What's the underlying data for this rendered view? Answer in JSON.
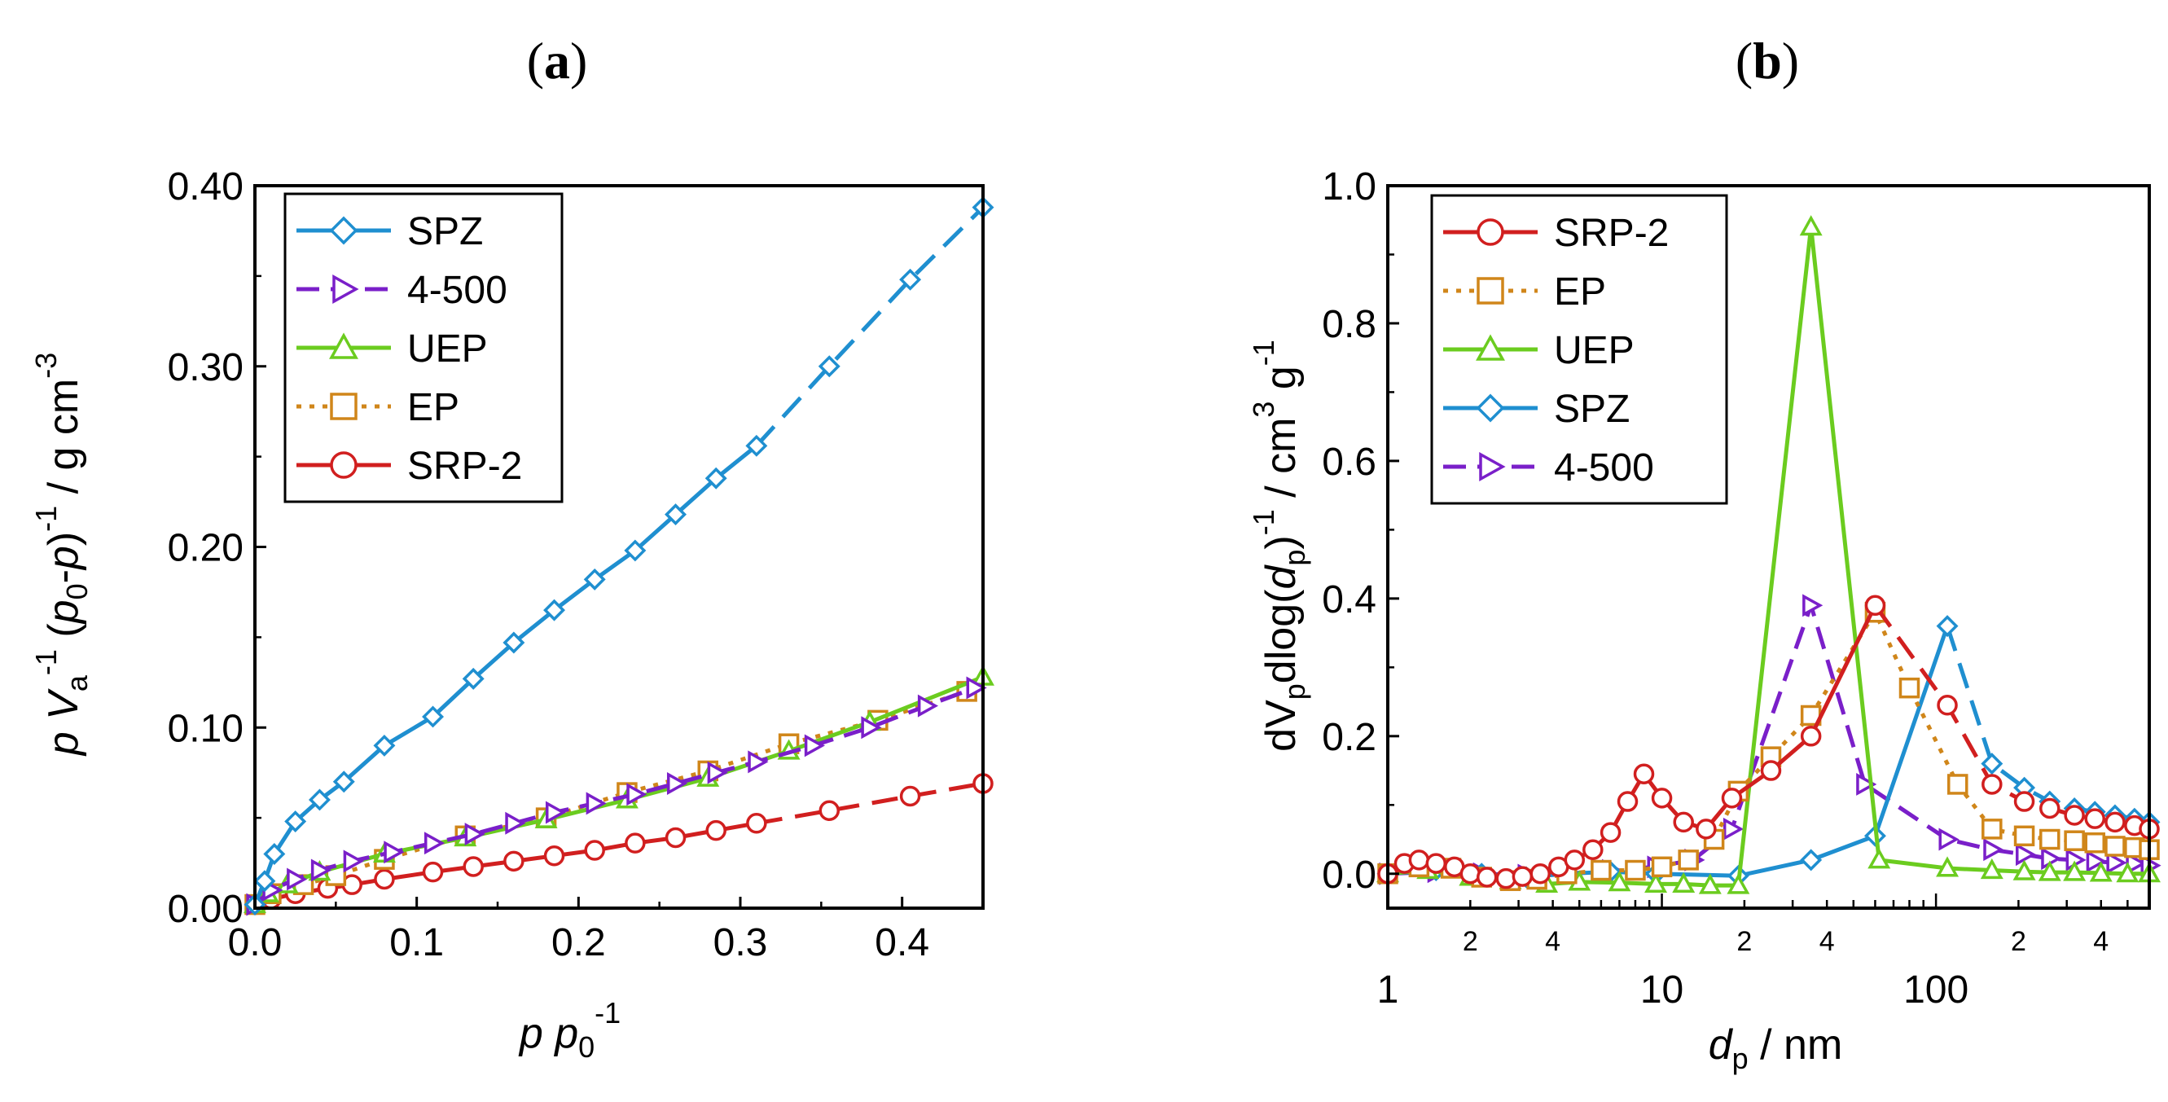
{
  "chart_data": [
    {
      "panel": "(a)",
      "type": "line",
      "panel_label": {
        "open": "(",
        "letter": "a",
        "close": ")"
      },
      "xlabel": {
        "italic1": "p",
        "italic2": "p",
        "sub": "0",
        "sup": "-1"
      },
      "ylabel": {
        "p": "p",
        "V": "V",
        "sub_a": "a",
        "sup1": "-1",
        "open": "(",
        "p0": "p",
        "sub0": "0",
        "dash": "-",
        "p2": "p",
        "close": ")",
        "sup2": "-1",
        "unit": " / g cm",
        "sup3": "-3"
      },
      "xlim": [
        0,
        0.45
      ],
      "ylim": [
        0,
        0.4
      ],
      "xticks": [
        0.0,
        0.1,
        0.2,
        0.3,
        0.4
      ],
      "xtick_labels": [
        "0.0",
        "0.1",
        "0.2",
        "0.3",
        "0.4"
      ],
      "yticks": [
        0,
        0.1,
        0.2,
        0.3,
        0.4
      ],
      "ytick_labels": [
        "0.00",
        "0.10",
        "0.20",
        "0.30",
        "0.40"
      ],
      "legend_position": "top-left",
      "legend_order": [
        "SPZ",
        "4-500",
        "UEP",
        "EP",
        "SRP-2"
      ],
      "series": [
        {
          "name": "SPZ",
          "color": "#1f8fd0",
          "marker": "diamond",
          "dash": "solid",
          "x": [
            0.0,
            0.006,
            0.012,
            0.025,
            0.04,
            0.055,
            0.08,
            0.11,
            0.135,
            0.16,
            0.185,
            0.21,
            0.235,
            0.26,
            0.285,
            0.31,
            0.355,
            0.405,
            0.45
          ],
          "y": [
            0.002,
            0.015,
            0.03,
            0.048,
            0.06,
            0.07,
            0.09,
            0.106,
            0.127,
            0.147,
            0.165,
            0.182,
            0.198,
            0.218,
            0.238,
            0.256,
            0.3,
            0.348,
            0.388
          ],
          "dashed_from_x": 0.31
        },
        {
          "name": "4-500",
          "color": "#7a1fc9",
          "marker": "triangle-right",
          "dash": "dash",
          "x": [
            0.0,
            0.01,
            0.025,
            0.04,
            0.06,
            0.085,
            0.11,
            0.135,
            0.16,
            0.185,
            0.21,
            0.235,
            0.26,
            0.285,
            0.31,
            0.345,
            0.38,
            0.415,
            0.445
          ],
          "y": [
            0.002,
            0.01,
            0.016,
            0.021,
            0.026,
            0.031,
            0.036,
            0.041,
            0.047,
            0.053,
            0.058,
            0.063,
            0.069,
            0.075,
            0.081,
            0.09,
            0.1,
            0.112,
            0.122
          ]
        },
        {
          "name": "UEP",
          "color": "#6bcc1f",
          "marker": "triangle-up",
          "dash": "solid",
          "x": [
            0.0,
            0.008,
            0.02,
            0.04,
            0.08,
            0.13,
            0.18,
            0.23,
            0.28,
            0.33,
            0.38,
            0.45
          ],
          "y": [
            0.002,
            0.008,
            0.013,
            0.02,
            0.03,
            0.039,
            0.049,
            0.06,
            0.072,
            0.087,
            0.103,
            0.128
          ]
        },
        {
          "name": "EP",
          "color": "#d0861a",
          "marker": "square",
          "dash": "dot",
          "x": [
            0.0,
            0.01,
            0.03,
            0.05,
            0.08,
            0.13,
            0.18,
            0.23,
            0.28,
            0.33,
            0.385,
            0.44
          ],
          "y": [
            0.002,
            0.008,
            0.013,
            0.018,
            0.027,
            0.04,
            0.05,
            0.064,
            0.076,
            0.091,
            0.104,
            0.12
          ]
        },
        {
          "name": "SRP-2",
          "color": "#d11f1f",
          "marker": "circle",
          "dash": "solid",
          "x": [
            0.0,
            0.01,
            0.025,
            0.045,
            0.06,
            0.08,
            0.11,
            0.135,
            0.16,
            0.185,
            0.21,
            0.235,
            0.26,
            0.285,
            0.31,
            0.355,
            0.405,
            0.45
          ],
          "y": [
            0.002,
            0.005,
            0.008,
            0.011,
            0.013,
            0.016,
            0.02,
            0.023,
            0.026,
            0.029,
            0.032,
            0.036,
            0.039,
            0.043,
            0.047,
            0.054,
            0.062,
            0.069
          ],
          "dashed_from_x": 0.31
        }
      ]
    },
    {
      "panel": "(b)",
      "type": "line",
      "xscale": "log",
      "panel_label": {
        "open": "(",
        "letter": "b",
        "close": ")"
      },
      "xlabel": {
        "d": "d",
        "sub": "p",
        "unit": " / nm"
      },
      "ylabel": {
        "d": "dV",
        "sub_p": "p",
        "log": "dlog(",
        "d2": "d",
        "sub_p2": "p",
        "close": ")",
        "sup1": "-1",
        "unit": " / cm",
        "sup3": "3",
        "g": " g",
        "supm1": "-1"
      },
      "xlim": [
        1,
        600
      ],
      "ylim": [
        -0.05,
        1.0
      ],
      "xtick_major": [
        1,
        10,
        100
      ],
      "xtick_major_labels": [
        "1",
        "10",
        "100"
      ],
      "xtick_minor_labels": [
        {
          "value": 2,
          "label": "2"
        },
        {
          "value": 4,
          "label": "4"
        },
        {
          "value": 20,
          "label": "2"
        },
        {
          "value": 40,
          "label": "4"
        },
        {
          "value": 200,
          "label": "2"
        },
        {
          "value": 400,
          "label": "4"
        }
      ],
      "yticks": [
        0.0,
        0.2,
        0.4,
        0.6,
        0.8,
        1.0
      ],
      "ytick_labels": [
        "0.0",
        "0.2",
        "0.4",
        "0.6",
        "0.8",
        "1.0"
      ],
      "legend_position": "top-left",
      "legend_order": [
        "SRP-2",
        "EP",
        "UEP",
        "SPZ",
        "4-500"
      ],
      "series": [
        {
          "name": "SRP-2",
          "color": "#d11f1f",
          "marker": "circle",
          "dash": "solid",
          "x": [
            1.0,
            1.15,
            1.3,
            1.5,
            1.75,
            2.0,
            2.3,
            2.7,
            3.1,
            3.6,
            4.2,
            4.8,
            5.6,
            6.5,
            7.5,
            8.6,
            10,
            12,
            14.5,
            18,
            25,
            35,
            60,
            110,
            160,
            210,
            260,
            320,
            380,
            450,
            530,
            600
          ],
          "y": [
            0.0,
            0.015,
            0.02,
            0.015,
            0.01,
            0.0,
            -0.005,
            -0.007,
            -0.004,
            0.0,
            0.01,
            0.02,
            0.035,
            0.06,
            0.105,
            0.145,
            0.11,
            0.075,
            0.065,
            0.11,
            0.15,
            0.2,
            0.39,
            0.245,
            0.13,
            0.105,
            0.095,
            0.085,
            0.08,
            0.075,
            0.07,
            0.065
          ],
          "dashed_from_x": 60
        },
        {
          "name": "EP",
          "color": "#d0861a",
          "marker": "square",
          "dash": "dot",
          "x": [
            1.0,
            1.3,
            1.7,
            2.2,
            2.8,
            3.5,
            4.5,
            6,
            8,
            10,
            12.5,
            15.5,
            19,
            25,
            35,
            60,
            80,
            120,
            160,
            210,
            260,
            320,
            380,
            450,
            530,
            600
          ],
          "y": [
            0.0,
            0.01,
            0.008,
            -0.005,
            -0.01,
            -0.008,
            0.0,
            0.005,
            0.005,
            0.01,
            0.02,
            0.05,
            0.12,
            0.17,
            0.23,
            0.38,
            0.27,
            0.13,
            0.065,
            0.055,
            0.05,
            0.048,
            0.045,
            0.04,
            0.038,
            0.035
          ]
        },
        {
          "name": "UEP",
          "color": "#6bcc1f",
          "marker": "triangle-up",
          "dash": "solid",
          "x": [
            1.0,
            1.4,
            2.0,
            2.8,
            3.8,
            5.0,
            7.0,
            9.5,
            12,
            15,
            19,
            35,
            62,
            110,
            160,
            210,
            260,
            320,
            400,
            500,
            600
          ],
          "y": [
            0.0,
            0.005,
            -0.005,
            -0.01,
            -0.015,
            -0.012,
            -0.013,
            -0.015,
            -0.015,
            -0.017,
            -0.017,
            0.94,
            0.02,
            0.008,
            0.005,
            0.003,
            0.002,
            0.002,
            0.001,
            0.0,
            0.0
          ]
        },
        {
          "name": "SPZ",
          "color": "#1f8fd0",
          "marker": "diamond",
          "dash": "solid",
          "x": [
            1.0,
            1.5,
            2.2,
            3.2,
            4.5,
            6.5,
            9.5,
            19,
            35,
            60,
            110,
            160,
            210,
            260,
            320,
            380,
            450,
            530,
            600
          ],
          "y": [
            0.0,
            0.005,
            0.0,
            -0.005,
            0.0,
            0.003,
            0.0,
            -0.003,
            0.02,
            0.055,
            0.36,
            0.16,
            0.125,
            0.105,
            0.095,
            0.09,
            0.085,
            0.08,
            0.075
          ],
          "dashed_from_x": 110
        },
        {
          "name": "4-500",
          "color": "#7a1fc9",
          "marker": "triangle-right",
          "dash": "dash",
          "x": [
            1.0,
            1.5,
            2.2,
            3.2,
            4.5,
            6.5,
            9.5,
            13,
            18,
            35,
            55,
            110,
            160,
            210,
            260,
            320,
            380,
            450,
            530,
            600
          ],
          "y": [
            0.0,
            0.003,
            0.0,
            -0.002,
            0.0,
            0.005,
            0.01,
            0.02,
            0.065,
            0.39,
            0.13,
            0.05,
            0.035,
            0.028,
            0.022,
            0.02,
            0.018,
            0.016,
            0.015,
            0.012
          ]
        }
      ]
    }
  ]
}
